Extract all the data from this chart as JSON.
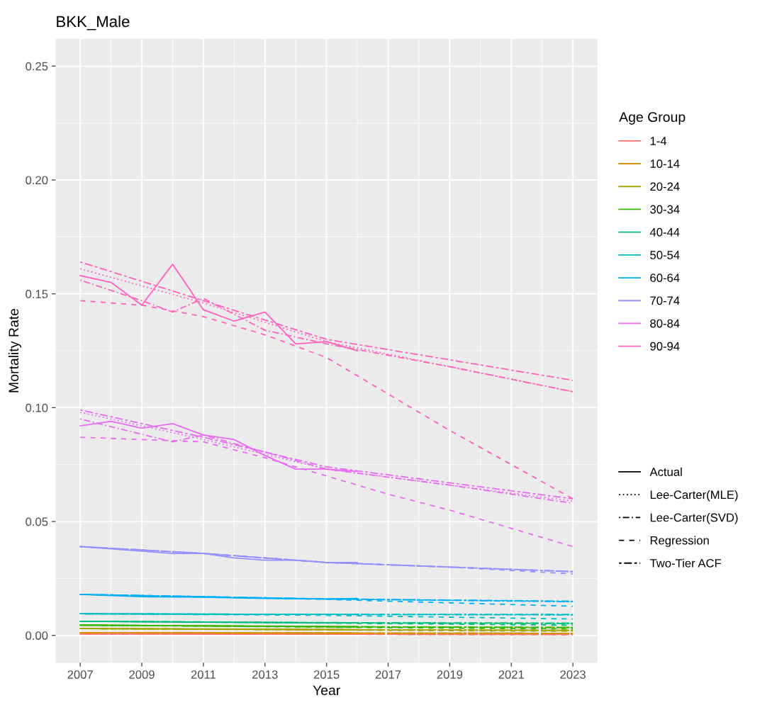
{
  "chart_data": {
    "type": "line",
    "title": "BKK_Male",
    "xlabel": "Year",
    "ylabel": "Mortality Rate",
    "legend_title": "Age Group",
    "xlim": [
      2006.2,
      2023.8
    ],
    "xticks": [
      2007,
      2009,
      2011,
      2013,
      2015,
      2017,
      2019,
      2021,
      2023
    ],
    "ylim": [
      -0.012,
      0.262
    ],
    "yticks": [
      {
        "value": 0,
        "label": "0.00"
      },
      {
        "value": 0.05,
        "label": "0.05"
      },
      {
        "value": 0.1,
        "label": "0.10"
      },
      {
        "value": 0.15,
        "label": "0.15"
      },
      {
        "value": 0.2,
        "label": "0.20"
      },
      {
        "value": 0.25,
        "label": "0.25"
      }
    ],
    "grid": true,
    "legend": "right",
    "annotations": [
      "Actual",
      "Lee-Carter(MLE)",
      "Lee-Carter(SVD)",
      "Regression",
      "Two-Tier ACF"
    ],
    "series": [
      {
        "name": "1-4",
        "color": "#f8766d",
        "line_style": "solid",
        "x": [
          2007,
          2011,
          2016
        ],
        "values": [
          0.0007,
          0.0006,
          0.0005
        ]
      },
      {
        "color": "#f8766d",
        "line_style": "dotted",
        "x": [
          2007,
          2015,
          2023
        ],
        "values": [
          0.0007,
          0.0005,
          0.0004
        ]
      },
      {
        "color": "#f8766d",
        "line_style": "dashdot",
        "x": [
          2007,
          2015,
          2023
        ],
        "values": [
          0.0007,
          0.0005,
          0.0004
        ]
      },
      {
        "color": "#f8766d",
        "line_style": "dashed",
        "x": [
          2007,
          2015,
          2023
        ],
        "values": [
          0.0007,
          0.0005,
          0.0003
        ]
      },
      {
        "color": "#f8766d",
        "line_style": "twodash",
        "x": [
          2007,
          2015,
          2023
        ],
        "values": [
          0.0007,
          0.0005,
          0.0004
        ]
      },
      {
        "name": "10-14",
        "color": "#d89000",
        "line_style": "solid",
        "x": [
          2007,
          2011,
          2016
        ],
        "values": [
          0.0012,
          0.0011,
          0.001
        ]
      },
      {
        "color": "#d89000",
        "line_style": "dotted",
        "x": [
          2007,
          2015,
          2023
        ],
        "values": [
          0.0012,
          0.001,
          0.0009
        ]
      },
      {
        "color": "#d89000",
        "line_style": "dashdot",
        "x": [
          2007,
          2015,
          2023
        ],
        "values": [
          0.0012,
          0.001,
          0.0009
        ]
      },
      {
        "color": "#d89000",
        "line_style": "dashed",
        "x": [
          2007,
          2015,
          2023
        ],
        "values": [
          0.0012,
          0.001,
          0.0008
        ]
      },
      {
        "color": "#d89000",
        "line_style": "twodash",
        "x": [
          2007,
          2015,
          2023
        ],
        "values": [
          0.0012,
          0.001,
          0.0009
        ]
      },
      {
        "name": "20-24",
        "color": "#a3a500",
        "line_style": "solid",
        "x": [
          2007,
          2011,
          2016
        ],
        "values": [
          0.003,
          0.0028,
          0.0025
        ]
      },
      {
        "color": "#a3a500",
        "line_style": "dotted",
        "x": [
          2007,
          2015,
          2023
        ],
        "values": [
          0.003,
          0.0025,
          0.0022
        ]
      },
      {
        "color": "#a3a500",
        "line_style": "dashdot",
        "x": [
          2007,
          2015,
          2023
        ],
        "values": [
          0.003,
          0.0025,
          0.0022
        ]
      },
      {
        "color": "#a3a500",
        "line_style": "dashed",
        "x": [
          2007,
          2015,
          2023
        ],
        "values": [
          0.003,
          0.0024,
          0.0018
        ]
      },
      {
        "color": "#a3a500",
        "line_style": "twodash",
        "x": [
          2007,
          2015,
          2023
        ],
        "values": [
          0.003,
          0.0025,
          0.0022
        ]
      },
      {
        "name": "30-34",
        "color": "#39b600",
        "line_style": "solid",
        "x": [
          2007,
          2011,
          2016
        ],
        "values": [
          0.0045,
          0.0042,
          0.0038
        ]
      },
      {
        "color": "#39b600",
        "line_style": "dotted",
        "x": [
          2007,
          2015,
          2023
        ],
        "values": [
          0.0045,
          0.0038,
          0.0034
        ]
      },
      {
        "color": "#39b600",
        "line_style": "dashdot",
        "x": [
          2007,
          2015,
          2023
        ],
        "values": [
          0.0045,
          0.0038,
          0.0034
        ]
      },
      {
        "color": "#39b600",
        "line_style": "dashed",
        "x": [
          2007,
          2015,
          2023
        ],
        "values": [
          0.0045,
          0.0036,
          0.0028
        ]
      },
      {
        "color": "#39b600",
        "line_style": "twodash",
        "x": [
          2007,
          2015,
          2023
        ],
        "values": [
          0.0045,
          0.0038,
          0.0035
        ]
      },
      {
        "name": "40-44",
        "color": "#00bf7d",
        "line_style": "solid",
        "x": [
          2007,
          2011,
          2016
        ],
        "values": [
          0.0062,
          0.0058,
          0.0055
        ]
      },
      {
        "color": "#00bf7d",
        "line_style": "dotted",
        "x": [
          2007,
          2015,
          2023
        ],
        "values": [
          0.0062,
          0.0055,
          0.0052
        ]
      },
      {
        "color": "#00bf7d",
        "line_style": "dashdot",
        "x": [
          2007,
          2015,
          2023
        ],
        "values": [
          0.0062,
          0.0055,
          0.0052
        ]
      },
      {
        "color": "#00bf7d",
        "line_style": "dashed",
        "x": [
          2007,
          2015,
          2023
        ],
        "values": [
          0.0062,
          0.0054,
          0.0045
        ]
      },
      {
        "color": "#00bf7d",
        "line_style": "twodash",
        "x": [
          2007,
          2015,
          2023
        ],
        "values": [
          0.0062,
          0.0056,
          0.0054
        ]
      },
      {
        "name": "50-54",
        "color": "#00bfc4",
        "line_style": "solid",
        "x": [
          2007,
          2011,
          2016
        ],
        "values": [
          0.0095,
          0.0093,
          0.0092
        ]
      },
      {
        "color": "#00bfc4",
        "line_style": "dotted",
        "x": [
          2007,
          2015,
          2023
        ],
        "values": [
          0.0095,
          0.0092,
          0.009
        ]
      },
      {
        "color": "#00bfc4",
        "line_style": "dashdot",
        "x": [
          2007,
          2015,
          2023
        ],
        "values": [
          0.0095,
          0.0092,
          0.009
        ]
      },
      {
        "color": "#00bfc4",
        "line_style": "dashed",
        "x": [
          2007,
          2015,
          2023
        ],
        "values": [
          0.0095,
          0.0088,
          0.0072
        ]
      },
      {
        "color": "#00bfc4",
        "line_style": "twodash",
        "x": [
          2007,
          2015,
          2023
        ],
        "values": [
          0.0095,
          0.0092,
          0.0092
        ]
      },
      {
        "name": "60-64",
        "color": "#00b0f6",
        "line_style": "solid",
        "x": [
          2007,
          2009,
          2011,
          2013,
          2015,
          2016
        ],
        "values": [
          0.018,
          0.017,
          0.0168,
          0.0162,
          0.016,
          0.0162
        ]
      },
      {
        "color": "#00b0f6",
        "line_style": "dotted",
        "x": [
          2007,
          2015,
          2023
        ],
        "values": [
          0.018,
          0.016,
          0.0148
        ]
      },
      {
        "color": "#00b0f6",
        "line_style": "dashdot",
        "x": [
          2007,
          2015,
          2023
        ],
        "values": [
          0.018,
          0.016,
          0.0148
        ]
      },
      {
        "color": "#00b0f6",
        "line_style": "dashed",
        "x": [
          2007,
          2015,
          2023
        ],
        "values": [
          0.018,
          0.0158,
          0.0128
        ]
      },
      {
        "color": "#00b0f6",
        "line_style": "twodash",
        "x": [
          2007,
          2015,
          2023
        ],
        "values": [
          0.018,
          0.016,
          0.015
        ]
      },
      {
        "name": "70-74",
        "color": "#9590ff",
        "line_style": "solid",
        "x": [
          2007,
          2008,
          2009,
          2010,
          2011,
          2012,
          2013,
          2014,
          2015,
          2016
        ],
        "values": [
          0.039,
          0.038,
          0.037,
          0.036,
          0.036,
          0.034,
          0.033,
          0.033,
          0.032,
          0.032
        ]
      },
      {
        "color": "#9590ff",
        "line_style": "dotted",
        "x": [
          2007,
          2011,
          2015,
          2019,
          2023
        ],
        "values": [
          0.039,
          0.036,
          0.032,
          0.03,
          0.028
        ]
      },
      {
        "color": "#9590ff",
        "line_style": "dashdot",
        "x": [
          2007,
          2011,
          2015,
          2019,
          2023
        ],
        "values": [
          0.039,
          0.036,
          0.032,
          0.03,
          0.028
        ]
      },
      {
        "color": "#9590ff",
        "line_style": "dashed",
        "x": [
          2007,
          2011,
          2015,
          2019,
          2023
        ],
        "values": [
          0.039,
          0.036,
          0.032,
          0.03,
          0.027
        ]
      },
      {
        "color": "#9590ff",
        "line_style": "twodash",
        "x": [
          2007,
          2011,
          2015,
          2019,
          2023
        ],
        "values": [
          0.039,
          0.036,
          0.032,
          0.03,
          0.028
        ]
      },
      {
        "name": "80-84",
        "color": "#e76bf3",
        "line_style": "solid",
        "x": [
          2007,
          2008,
          2009,
          2010,
          2011,
          2012,
          2013,
          2014,
          2015,
          2016
        ],
        "values": [
          0.092,
          0.094,
          0.091,
          0.093,
          0.088,
          0.086,
          0.079,
          0.073,
          0.073,
          0.072
        ]
      },
      {
        "color": "#e76bf3",
        "line_style": "dotted",
        "x": [
          2007,
          2011,
          2015,
          2019,
          2023
        ],
        "values": [
          0.098,
          0.086,
          0.073,
          0.066,
          0.059
        ]
      },
      {
        "color": "#e76bf3",
        "line_style": "dashdot",
        "x": [
          2007,
          2010,
          2011,
          2015,
          2019,
          2023
        ],
        "values": [
          0.095,
          0.085,
          0.088,
          0.073,
          0.066,
          0.058
        ]
      },
      {
        "color": "#e76bf3",
        "line_style": "dashed",
        "x": [
          2007,
          2009,
          2011,
          2013,
          2015,
          2017,
          2019,
          2021,
          2023
        ],
        "values": [
          0.087,
          0.086,
          0.085,
          0.078,
          0.07,
          0.062,
          0.055,
          0.047,
          0.039
        ]
      },
      {
        "color": "#e76bf3",
        "line_style": "twodash",
        "x": [
          2007,
          2011,
          2015,
          2019,
          2023
        ],
        "values": [
          0.099,
          0.087,
          0.074,
          0.067,
          0.06
        ]
      },
      {
        "name": "90-94",
        "color": "#ff62bc",
        "line_style": "solid",
        "x": [
          2007,
          2008,
          2009,
          2010,
          2011,
          2012,
          2013,
          2014,
          2015,
          2016
        ],
        "values": [
          0.158,
          0.155,
          0.145,
          0.163,
          0.143,
          0.138,
          0.142,
          0.128,
          0.129,
          0.125
        ]
      },
      {
        "color": "#ff62bc",
        "line_style": "dotted",
        "x": [
          2007,
          2011,
          2015,
          2019,
          2023
        ],
        "values": [
          0.161,
          0.146,
          0.129,
          0.118,
          0.107
        ]
      },
      {
        "color": "#ff62bc",
        "line_style": "dashdot",
        "x": [
          2007,
          2009,
          2010,
          2011,
          2013,
          2015,
          2019,
          2023
        ],
        "values": [
          0.156,
          0.147,
          0.142,
          0.148,
          0.134,
          0.128,
          0.118,
          0.107
        ]
      },
      {
        "color": "#ff62bc",
        "line_style": "dashed",
        "x": [
          2007,
          2009,
          2011,
          2013,
          2015,
          2017,
          2019,
          2021,
          2023
        ],
        "values": [
          0.147,
          0.145,
          0.14,
          0.132,
          0.122,
          0.106,
          0.09,
          0.075,
          0.06
        ]
      },
      {
        "color": "#ff62bc",
        "line_style": "twodash",
        "x": [
          2007,
          2011,
          2015,
          2019,
          2023
        ],
        "values": [
          0.164,
          0.147,
          0.13,
          0.121,
          0.112
        ]
      }
    ]
  }
}
